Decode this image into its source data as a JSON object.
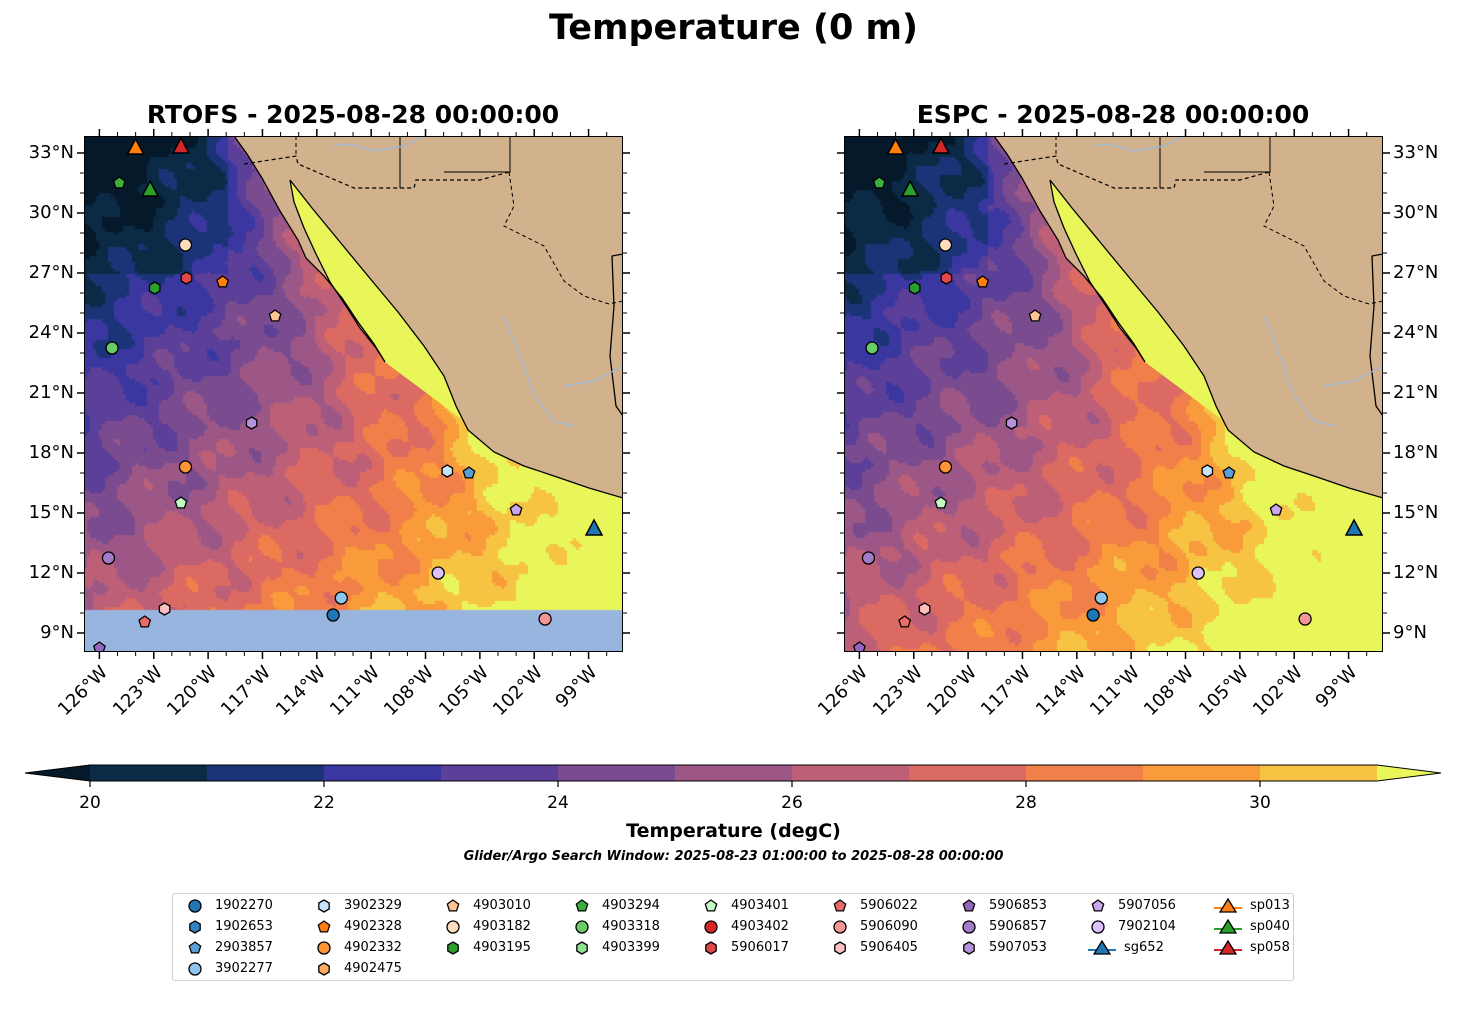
{
  "title": "Temperature (0 m)",
  "chart_data": [
    {
      "type": "map",
      "title": "RTOFS - 2025-08-28 00:00:00",
      "variable": "Temperature",
      "units": "degC",
      "depth_m": 0,
      "lon_range": [
        -126.85,
        -97.1
      ],
      "lat_range": [
        8.05,
        33.85
      ],
      "lon_ticks": [
        -126,
        -123,
        -120,
        -117,
        -114,
        -111,
        -108,
        -105,
        -102,
        -99
      ],
      "lon_tick_labels": [
        "126°W",
        "123°W",
        "120°W",
        "117°W",
        "114°W",
        "111°W",
        "108°W",
        "105°W",
        "102°W",
        "99°W"
      ],
      "lat_ticks": [
        9,
        12,
        15,
        18,
        21,
        24,
        27,
        30,
        33
      ],
      "lat_tick_labels": [
        "9°N",
        "12°N",
        "15°N",
        "18°N",
        "21°N",
        "24°N",
        "27°N",
        "30°N",
        "33°N"
      ],
      "lat_labels_side": "left",
      "no_data_south_of_lat": 10.2
    },
    {
      "type": "map",
      "title": "ESPC - 2025-08-28 00:00:00",
      "variable": "Temperature",
      "units": "degC",
      "depth_m": 0,
      "lon_range": [
        -126.85,
        -97.1
      ],
      "lat_range": [
        8.05,
        33.85
      ],
      "lon_ticks": [
        -126,
        -123,
        -120,
        -117,
        -114,
        -111,
        -108,
        -105,
        -102,
        -99
      ],
      "lon_tick_labels": [
        "126°W",
        "123°W",
        "120°W",
        "117°W",
        "114°W",
        "111°W",
        "108°W",
        "105°W",
        "102°W",
        "99°W"
      ],
      "lat_ticks": [
        9,
        12,
        15,
        18,
        21,
        24,
        27,
        30,
        33
      ],
      "lat_tick_labels": [
        "9°N",
        "12°N",
        "15°N",
        "18°N",
        "21°N",
        "24°N",
        "27°N",
        "30°N",
        "33°N"
      ],
      "lat_labels_side": "right",
      "no_data_south_of_lat": null
    }
  ],
  "observations": [
    {
      "id": "sp013",
      "lon": -124.0,
      "lat": 33.25
    },
    {
      "id": "sp058",
      "lon": -121.5,
      "lat": 33.3
    },
    {
      "id": "sp040",
      "lon": -123.2,
      "lat": 31.15
    },
    {
      "id": "4903294",
      "lon": -124.9,
      "lat": 31.5
    },
    {
      "id": "4903182",
      "lon": -121.25,
      "lat": 28.4
    },
    {
      "id": "5906017",
      "lon": -121.2,
      "lat": 26.75
    },
    {
      "id": "4902328",
      "lon": -119.2,
      "lat": 26.55
    },
    {
      "id": "4903195",
      "lon": -122.95,
      "lat": 26.25
    },
    {
      "id": "4903010",
      "lon": -116.3,
      "lat": 24.85
    },
    {
      "id": "4903318",
      "lon": -125.3,
      "lat": 23.25
    },
    {
      "id": "5907053",
      "lon": -117.6,
      "lat": 19.5
    },
    {
      "id": "4902332",
      "lon": -121.25,
      "lat": 17.3
    },
    {
      "id": "3902329",
      "lon": -106.8,
      "lat": 17.1
    },
    {
      "id": "2903857",
      "lon": -105.6,
      "lat": 17.0
    },
    {
      "id": "4903401",
      "lon": -121.5,
      "lat": 15.5
    },
    {
      "id": "5907056",
      "lon": -103.0,
      "lat": 15.15
    },
    {
      "id": "sg652",
      "lon": -98.7,
      "lat": 14.2
    },
    {
      "id": "5906857",
      "lon": -125.5,
      "lat": 12.75
    },
    {
      "id": "7902104",
      "lon": -107.3,
      "lat": 12.0
    },
    {
      "id": "3902277",
      "lon": -112.65,
      "lat": 10.75
    },
    {
      "id": "5906405",
      "lon": -122.4,
      "lat": 10.2
    },
    {
      "id": "1902270",
      "lon": -113.1,
      "lat": 9.9
    },
    {
      "id": "5906022",
      "lon": -123.5,
      "lat": 9.55
    },
    {
      "id": "5906090",
      "lon": -101.4,
      "lat": 9.7
    },
    {
      "id": "5906853",
      "lon": -126.0,
      "lat": 8.25
    }
  ],
  "colorbar": {
    "label": "Temperature (degC)",
    "levels": [
      20,
      21,
      22,
      23,
      24,
      25,
      26,
      27,
      28,
      29,
      30,
      31
    ],
    "colors": [
      "#0b2a45",
      "#1b3477",
      "#3a37a0",
      "#5b3f98",
      "#7a4c8f",
      "#9c5786",
      "#bd5f77",
      "#db6a63",
      "#f07f4a",
      "#f99b3a",
      "#f6c343"
    ],
    "extend_min_color": "#06192b",
    "extend_max_color": "#e9f65a",
    "ticks": [
      20,
      22,
      24,
      26,
      28,
      30
    ],
    "tick_labels": [
      "20",
      "22",
      "24",
      "26",
      "28",
      "30"
    ]
  },
  "subtitle": "Glider/Argo Search Window: 2025-08-23 01:00:00 to 2025-08-28 00:00:00",
  "map_colors": {
    "land": "#d1b28c",
    "no_data": "#98b5e0",
    "river": "#9ab8df"
  },
  "legend": [
    {
      "label": "1902270",
      "marker": "circle",
      "color": "#1f77b4"
    },
    {
      "label": "1902653",
      "marker": "hexagon",
      "color": "#3282c2"
    },
    {
      "label": "2903857",
      "marker": "pentagon",
      "color": "#5aa0d6"
    },
    {
      "label": "3902277",
      "marker": "circle",
      "color": "#8ec5ec"
    },
    {
      "label": "3902329",
      "marker": "hexagon",
      "color": "#c6e4fb"
    },
    {
      "label": "4902328",
      "marker": "pentagon",
      "color": "#ff7f0e"
    },
    {
      "label": "4902332",
      "marker": "circle",
      "color": "#ff9436"
    },
    {
      "label": "4902475",
      "marker": "hexagon",
      "color": "#ffab66"
    },
    {
      "label": "4903010",
      "marker": "pentagon",
      "color": "#ffc494"
    },
    {
      "label": "4903182",
      "marker": "circle",
      "color": "#ffdcbc"
    },
    {
      "label": "4903195",
      "marker": "hexagon",
      "color": "#2ca02c"
    },
    {
      "label": "4903294",
      "marker": "pentagon",
      "color": "#3cb03c"
    },
    {
      "label": "4903318",
      "marker": "circle",
      "color": "#6acc64"
    },
    {
      "label": "4903399",
      "marker": "hexagon",
      "color": "#8fe08f"
    },
    {
      "label": "4903401",
      "marker": "pentagon",
      "color": "#c2fcc2"
    },
    {
      "label": "4903402",
      "marker": "circle",
      "color": "#d62728"
    },
    {
      "label": "5906017",
      "marker": "hexagon",
      "color": "#e0474a"
    },
    {
      "label": "5906022",
      "marker": "pentagon",
      "color": "#eb6b6b"
    },
    {
      "label": "5906090",
      "marker": "circle",
      "color": "#f59595"
    },
    {
      "label": "5906405",
      "marker": "hexagon",
      "color": "#ffc0c0"
    },
    {
      "label": "5906853",
      "marker": "pentagon",
      "color": "#9467bd"
    },
    {
      "label": "5906857",
      "marker": "circle",
      "color": "#a27cc9"
    },
    {
      "label": "5907053",
      "marker": "hexagon",
      "color": "#b493dc"
    },
    {
      "label": "5907056",
      "marker": "pentagon",
      "color": "#cba8ee"
    },
    {
      "label": "7902104",
      "marker": "circle",
      "color": "#dcc0fa"
    },
    {
      "label": "sg652",
      "marker": "triangle-line",
      "color": "#1f77b4"
    },
    {
      "label": "sp013",
      "marker": "triangle-line",
      "color": "#ff7f0e"
    },
    {
      "label": "sp040",
      "marker": "triangle-line",
      "color": "#2ca02c"
    },
    {
      "label": "sp058",
      "marker": "triangle-line",
      "color": "#d62728"
    }
  ]
}
